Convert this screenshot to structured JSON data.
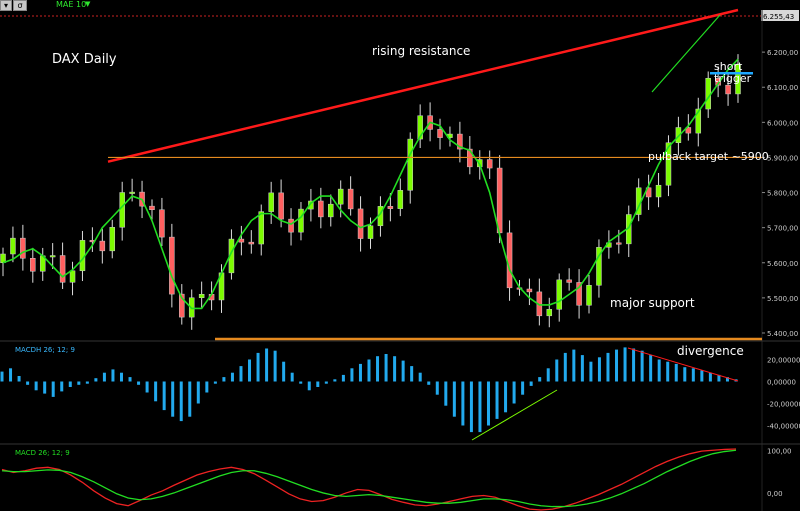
{
  "toolbar": {
    "chart_menu_icon": "chevron-down-icon",
    "study_icon": "indicator-icon",
    "ma_label": "MAE 10",
    "ma_arrow": "▼"
  },
  "panels": {
    "price_title": "DAX Daily",
    "macd_hist_label": "MACDH 26; 12; 9",
    "macd_label": "MACD 26; 12; 9"
  },
  "annotations": {
    "rising_resistance": "rising resistance",
    "short_trigger_line1": "short",
    "short_trigger_line2": "trigger",
    "pullback_target": "pulback target ~5900",
    "major_support": "major support",
    "divergence": "divergence"
  },
  "colors": {
    "background": "#000000",
    "candle_up": "#7cfc00",
    "candle_down": "#ff6060",
    "moving_average": "#22dd22",
    "resistance_line": "#ff1a1a",
    "horizontal_levels": "#e58a1f",
    "trigger_line": "#1ea8ff",
    "macd_hist": "#22aaee",
    "macd_line": "#22dd22",
    "signal_line": "#ee2222"
  },
  "chart_data": [
    {
      "type": "candlestick",
      "title": "DAX Daily",
      "ylim": [
        5380,
        6320
      ],
      "y_ticks": [
        "6.200,00",
        "6.100,00",
        "6.000,00",
        "5.900,00",
        "5.800,00",
        "5.700,00",
        "5.600,00",
        "5.500,00",
        "5.400,00"
      ],
      "last_price": "6.255,43",
      "series": [
        {
          "name": "MAE 10",
          "values": [
            5600,
            5610,
            5630,
            5640,
            5620,
            5590,
            5560,
            5580,
            5610,
            5650,
            5700,
            5730,
            5760,
            5790,
            5780,
            5720,
            5640,
            5560,
            5500,
            5470,
            5470,
            5510,
            5570,
            5630,
            5680,
            5720,
            5740,
            5740,
            5720,
            5710,
            5730,
            5770,
            5790,
            5790,
            5750,
            5720,
            5700,
            5710,
            5740,
            5790,
            5850,
            5910,
            5960,
            6000,
            5990,
            5950,
            5930,
            5920,
            5880,
            5800,
            5680,
            5580,
            5530,
            5500,
            5480,
            5480,
            5490,
            5510,
            5530,
            5570,
            5620,
            5660,
            5680,
            5700,
            5760,
            5820,
            5880,
            5930,
            5960,
            5990,
            6030,
            6070,
            6110,
            6150,
            6180
          ]
        }
      ],
      "key_levels": {
        "rising_resistance_start": 5888,
        "rising_resistance_end": 6320,
        "pullback_target": 5900,
        "major_support": 5383,
        "short_trigger": 6140
      }
    },
    {
      "type": "bar",
      "name": "MACDH 26; 12; 9",
      "ylim": [
        -55,
        35
      ],
      "y_ticks": [
        "20,00000",
        "0,00000",
        "-20,00000",
        "-40,00000"
      ],
      "values": [
        9,
        12,
        5,
        -3,
        -8,
        -11,
        -14,
        -9,
        -5,
        -3,
        -2,
        3,
        8,
        11,
        8,
        4,
        -3,
        -10,
        -18,
        -26,
        -32,
        -36,
        -32,
        -20,
        -10,
        -2,
        4,
        8,
        14,
        20,
        26,
        30,
        28,
        18,
        8,
        -2,
        -8,
        -5,
        -2,
        2,
        6,
        12,
        16,
        20,
        23,
        25,
        23,
        19,
        14,
        8,
        -3,
        -12,
        -22,
        -32,
        -40,
        -46,
        -46,
        -40,
        -34,
        -28,
        -20,
        -12,
        -4,
        4,
        12,
        20,
        26,
        29,
        24,
        18,
        22,
        26,
        29,
        31,
        30,
        28,
        24,
        20,
        18,
        16,
        13,
        12,
        10,
        8,
        6,
        4,
        2
      ]
    },
    {
      "type": "line",
      "name": "MACD 26; 12; 9",
      "ylim": [
        -40,
        110
      ],
      "y_ticks": [
        "100,00",
        "0,00"
      ],
      "series": [
        {
          "name": "MACD",
          "values": [
            55,
            48,
            52,
            58,
            60,
            55,
            42,
            25,
            5,
            -12,
            -25,
            -30,
            -18,
            -5,
            5,
            18,
            30,
            42,
            50,
            56,
            60,
            55,
            45,
            30,
            14,
            -2,
            -14,
            -20,
            -18,
            -10,
            0,
            8,
            6,
            -4,
            -15,
            -22,
            -28,
            -30,
            -26,
            -20,
            -14,
            -8,
            -6,
            -10,
            -20,
            -30,
            -38,
            -40,
            -38,
            -32,
            -24,
            -14,
            -4,
            8,
            20,
            34,
            48,
            62,
            74,
            84,
            92,
            98,
            100,
            102,
            103
          ]
        },
        {
          "name": "Signal",
          "values": [
            52,
            50,
            50,
            52,
            54,
            53,
            48,
            38,
            26,
            12,
            -2,
            -12,
            -16,
            -14,
            -8,
            0,
            10,
            20,
            30,
            40,
            48,
            52,
            52,
            46,
            38,
            28,
            18,
            8,
            0,
            -6,
            -8,
            -6,
            -4,
            -6,
            -10,
            -14,
            -18,
            -22,
            -24,
            -24,
            -22,
            -18,
            -14,
            -14,
            -16,
            -20,
            -26,
            -30,
            -32,
            -32,
            -30,
            -26,
            -20,
            -12,
            -2,
            10,
            22,
            36,
            50,
            62,
            74,
            84,
            92,
            97,
            100
          ]
        }
      ]
    }
  ]
}
